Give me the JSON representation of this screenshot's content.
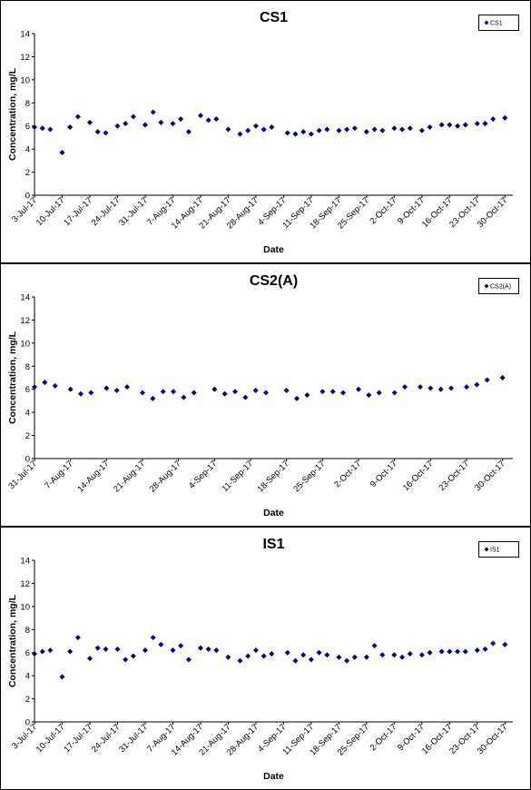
{
  "colors": {
    "marker": "#000080",
    "frame": "#000000",
    "background": "#ffffff"
  },
  "chart_data": [
    {
      "type": "scatter",
      "title": "CS1",
      "xlabel": "Date",
      "ylabel": "Concentration, mg/L",
      "ylim": [
        0,
        14
      ],
      "yticks": [
        "0",
        "2",
        "4",
        "6",
        "8",
        "10",
        "12",
        "14"
      ],
      "xlim": [
        "2017-07-03",
        "2017-11-01"
      ],
      "xticks": [
        "3-Jul-17",
        "10-Jul-17",
        "17-Jul-17",
        "24-Jul-17",
        "31-Jul-17",
        "7-Aug-17",
        "14-Aug-17",
        "21-Aug-17",
        "28-Aug-17",
        "4-Sep-17",
        "11-Sep-17",
        "18-Sep-17",
        "25-Sep-17",
        "2-Oct-17",
        "9-Oct-17",
        "16-Oct-17",
        "23-Oct-17",
        "30-Oct-17"
      ],
      "grid": false,
      "legend": "top-right",
      "series": [
        {
          "name": "CS1",
          "x": [
            "2017-07-03",
            "2017-07-05",
            "2017-07-07",
            "2017-07-10",
            "2017-07-12",
            "2017-07-14",
            "2017-07-17",
            "2017-07-19",
            "2017-07-21",
            "2017-07-24",
            "2017-07-26",
            "2017-07-28",
            "2017-07-31",
            "2017-08-02",
            "2017-08-04",
            "2017-08-07",
            "2017-08-09",
            "2017-08-11",
            "2017-08-14",
            "2017-08-16",
            "2017-08-18",
            "2017-08-21",
            "2017-08-24",
            "2017-08-26",
            "2017-08-28",
            "2017-08-30",
            "2017-09-01",
            "2017-09-05",
            "2017-09-07",
            "2017-09-09",
            "2017-09-11",
            "2017-09-13",
            "2017-09-15",
            "2017-09-18",
            "2017-09-20",
            "2017-09-22",
            "2017-09-25",
            "2017-09-27",
            "2017-09-29",
            "2017-10-02",
            "2017-10-04",
            "2017-10-06",
            "2017-10-09",
            "2017-10-11",
            "2017-10-14",
            "2017-10-16",
            "2017-10-18",
            "2017-10-20",
            "2017-10-23",
            "2017-10-25",
            "2017-10-27",
            "2017-10-30"
          ],
          "values": [
            5.9,
            5.8,
            5.7,
            3.7,
            5.9,
            6.8,
            6.3,
            5.5,
            5.4,
            6.0,
            6.2,
            6.8,
            6.1,
            7.2,
            6.3,
            6.2,
            6.6,
            5.5,
            6.9,
            6.5,
            6.6,
            5.7,
            5.3,
            5.6,
            6.0,
            5.7,
            5.9,
            5.4,
            5.3,
            5.5,
            5.3,
            5.6,
            5.7,
            5.6,
            5.7,
            5.8,
            5.5,
            5.7,
            5.6,
            5.8,
            5.7,
            5.8,
            5.6,
            5.9,
            6.1,
            6.1,
            6.0,
            6.1,
            6.2,
            6.2,
            6.6,
            6.7
          ]
        }
      ]
    },
    {
      "type": "scatter",
      "title": "CS2(A)",
      "xlabel": "Date",
      "ylabel": "Concentration, mg/L",
      "ylim": [
        0,
        14
      ],
      "yticks": [
        "0",
        "2",
        "4",
        "6",
        "8",
        "10",
        "12",
        "14"
      ],
      "xlim": [
        "2017-07-31",
        "2017-11-01"
      ],
      "xticks": [
        "31-Jul-17",
        "7-Aug-17",
        "14-Aug-17",
        "21-Aug-17",
        "28-Aug-17",
        "4-Sep-17",
        "11-Sep-17",
        "18-Sep-17",
        "25-Sep-17",
        "2-Oct-17",
        "9-Oct-17",
        "16-Oct-17",
        "23-Oct-17",
        "30-Oct-17"
      ],
      "grid": false,
      "legend": "top-right",
      "series": [
        {
          "name": "CS2(A)",
          "x": [
            "2017-07-31",
            "2017-08-02",
            "2017-08-04",
            "2017-08-07",
            "2017-08-09",
            "2017-08-11",
            "2017-08-14",
            "2017-08-16",
            "2017-08-18",
            "2017-08-21",
            "2017-08-23",
            "2017-08-25",
            "2017-08-27",
            "2017-08-29",
            "2017-08-31",
            "2017-09-04",
            "2017-09-06",
            "2017-09-08",
            "2017-09-10",
            "2017-09-12",
            "2017-09-14",
            "2017-09-18",
            "2017-09-20",
            "2017-09-22",
            "2017-09-25",
            "2017-09-27",
            "2017-09-29",
            "2017-10-02",
            "2017-10-04",
            "2017-10-06",
            "2017-10-09",
            "2017-10-11",
            "2017-10-14",
            "2017-10-16",
            "2017-10-18",
            "2017-10-20",
            "2017-10-23",
            "2017-10-25",
            "2017-10-27",
            "2017-10-30"
          ],
          "values": [
            6.2,
            6.6,
            6.3,
            6.0,
            5.6,
            5.7,
            6.1,
            5.9,
            6.2,
            5.7,
            5.2,
            5.8,
            5.8,
            5.3,
            5.7,
            6.0,
            5.6,
            5.8,
            5.3,
            5.9,
            5.7,
            5.9,
            5.2,
            5.5,
            5.8,
            5.8,
            5.7,
            6.0,
            5.5,
            5.7,
            5.7,
            6.2,
            6.2,
            6.1,
            6.0,
            6.1,
            6.2,
            6.4,
            6.8,
            7.0
          ]
        }
      ]
    },
    {
      "type": "scatter",
      "title": "IS1",
      "xlabel": "Date",
      "ylabel": "Concentration, mg/L",
      "ylim": [
        0,
        14
      ],
      "yticks": [
        "0",
        "2",
        "4",
        "6",
        "8",
        "10",
        "12",
        "14"
      ],
      "xlim": [
        "2017-07-03",
        "2017-11-01"
      ],
      "xticks": [
        "3-Jul-17",
        "10-Jul-17",
        "17-Jul-17",
        "24-Jul-17",
        "31-Jul-17",
        "7-Aug-17",
        "14-Aug-17",
        "21-Aug-17",
        "28-Aug-17",
        "4-Sep-17",
        "11-Sep-17",
        "18-Sep-17",
        "25-Sep-17",
        "2-Oct-17",
        "9-Oct-17",
        "16-Oct-17",
        "23-Oct-17",
        "30-Oct-17"
      ],
      "grid": false,
      "legend": "top-right",
      "series": [
        {
          "name": "IS1",
          "x": [
            "2017-07-03",
            "2017-07-05",
            "2017-07-07",
            "2017-07-10",
            "2017-07-12",
            "2017-07-14",
            "2017-07-17",
            "2017-07-19",
            "2017-07-21",
            "2017-07-24",
            "2017-07-26",
            "2017-07-28",
            "2017-07-31",
            "2017-08-02",
            "2017-08-04",
            "2017-08-07",
            "2017-08-09",
            "2017-08-11",
            "2017-08-14",
            "2017-08-16",
            "2017-08-18",
            "2017-08-21",
            "2017-08-24",
            "2017-08-26",
            "2017-08-28",
            "2017-08-30",
            "2017-09-01",
            "2017-09-05",
            "2017-09-07",
            "2017-09-09",
            "2017-09-11",
            "2017-09-13",
            "2017-09-15",
            "2017-09-18",
            "2017-09-20",
            "2017-09-22",
            "2017-09-25",
            "2017-09-27",
            "2017-09-29",
            "2017-10-02",
            "2017-10-04",
            "2017-10-06",
            "2017-10-09",
            "2017-10-11",
            "2017-10-14",
            "2017-10-16",
            "2017-10-18",
            "2017-10-20",
            "2017-10-23",
            "2017-10-25",
            "2017-10-27",
            "2017-10-30"
          ],
          "values": [
            5.9,
            6.1,
            6.2,
            3.9,
            6.1,
            7.3,
            5.5,
            6.4,
            6.3,
            6.3,
            5.4,
            5.7,
            6.2,
            7.3,
            6.7,
            6.2,
            6.6,
            5.4,
            6.4,
            6.3,
            6.2,
            5.6,
            5.3,
            5.7,
            6.2,
            5.7,
            5.9,
            6.0,
            5.3,
            5.8,
            5.4,
            6.0,
            5.8,
            5.6,
            5.3,
            5.6,
            5.6,
            6.6,
            5.8,
            5.8,
            5.6,
            5.9,
            5.8,
            6.0,
            6.1,
            6.1,
            6.1,
            6.1,
            6.2,
            6.3,
            6.8,
            6.7
          ]
        }
      ]
    }
  ]
}
